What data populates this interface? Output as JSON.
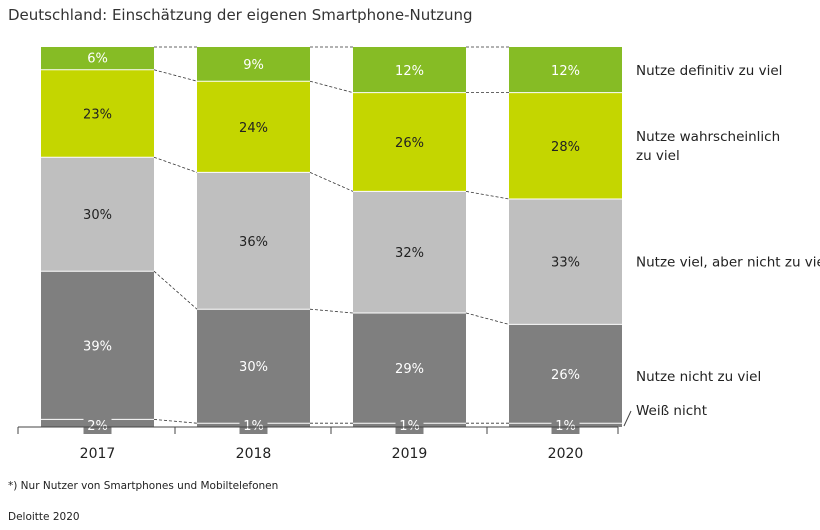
{
  "title": "Deutschland: Einschätzung der eigenen Smartphone-Nutzung",
  "footnote": "*) Nur Nutzer von Smartphones und Mobiltelefonen",
  "source": "Deloitte 2020",
  "colors": {
    "definitiv": "#86bc25",
    "wahrscheinlich": "#c4d600",
    "viel": "#bfbfbf",
    "nicht_zu_viel": "#7f7f7f",
    "weiss_nicht": "#7f7f7f"
  },
  "chart_data": {
    "type": "bar",
    "stacked": true,
    "categories": [
      "2017",
      "2018",
      "2019",
      "2020"
    ],
    "series": [
      {
        "name": "Weiß nicht",
        "key": "weiss_nicht",
        "values": [
          2,
          1,
          1,
          1
        ],
        "labels": [
          "2%",
          "1%",
          "1%",
          "1%"
        ]
      },
      {
        "name": "Nutze nicht zu viel",
        "key": "nicht_zu_viel",
        "values": [
          39,
          30,
          29,
          26
        ],
        "labels": [
          "39%",
          "30%",
          "29%",
          "26%"
        ]
      },
      {
        "name": "Nutze viel, aber nicht zu viel",
        "key": "viel",
        "values": [
          30,
          36,
          32,
          33
        ],
        "labels": [
          "30%",
          "36%",
          "32%",
          "33%"
        ]
      },
      {
        "name": "Nutze wahrscheinlich zu viel",
        "key": "wahrscheinlich",
        "values": [
          23,
          24,
          26,
          28
        ],
        "labels": [
          "23%",
          "24%",
          "26%",
          "28%"
        ]
      },
      {
        "name": "Nutze definitiv zu viel",
        "key": "definitiv",
        "values": [
          6,
          9,
          12,
          12
        ],
        "labels": [
          "6%",
          "9%",
          "12%",
          "12%"
        ]
      }
    ],
    "ylim": [
      0,
      100
    ],
    "grid": false,
    "legend_position": "right"
  }
}
